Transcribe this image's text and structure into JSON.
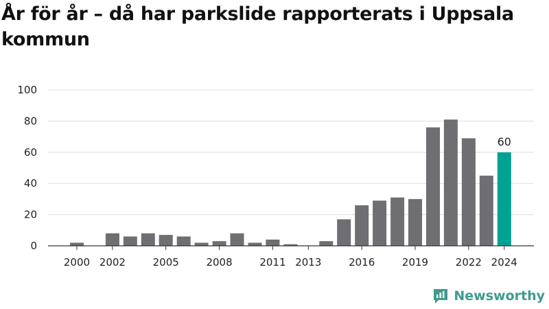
{
  "title": "År för år – då har parkslide rapporterats i Uppsala kommun",
  "brand": {
    "name": "Newsworthy",
    "icon": "newsworthy-logo-icon",
    "color": "#3f9a8f"
  },
  "colors": {
    "bar": "#6e6e73",
    "highlight": "#00a294",
    "grid": "#dcdcdc",
    "axis": "#333333"
  },
  "chart_data": {
    "type": "bar",
    "title": "År för år – då har parkslide rapporterats i Uppsala kommun",
    "xlabel": "",
    "ylabel": "",
    "ylim": [
      0,
      100
    ],
    "yticks": [
      0,
      20,
      40,
      60,
      80,
      100
    ],
    "grid": true,
    "categories": [
      2000,
      2001,
      2002,
      2003,
      2004,
      2005,
      2006,
      2007,
      2008,
      2009,
      2010,
      2011,
      2012,
      2013,
      2014,
      2015,
      2016,
      2017,
      2018,
      2019,
      2020,
      2021,
      2022,
      2023,
      2024
    ],
    "values": [
      2,
      0,
      8,
      6,
      8,
      7,
      6,
      2,
      3,
      8,
      2,
      4,
      1,
      0,
      3,
      17,
      26,
      29,
      31,
      30,
      76,
      81,
      69,
      45,
      60
    ],
    "xtick_labels": [
      2000,
      2002,
      2005,
      2008,
      2011,
      2013,
      2016,
      2019,
      2022,
      2024
    ],
    "highlight": {
      "category": 2024,
      "label": "60"
    }
  }
}
